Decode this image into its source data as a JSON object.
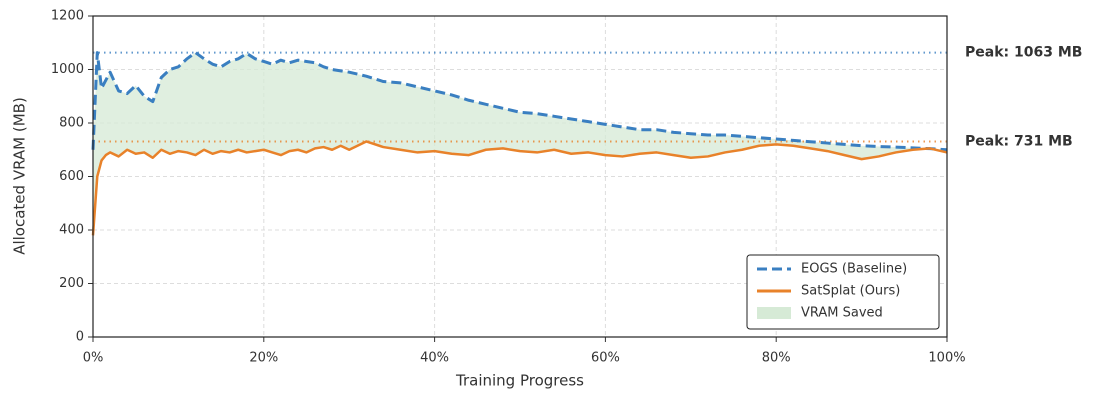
{
  "chart_data": {
    "type": "line",
    "xlabel": "Training Progress",
    "ylabel": "Allocated VRAM (MB)",
    "x": [
      0,
      0.5,
      1,
      1.5,
      2,
      3,
      4,
      5,
      6,
      7,
      8,
      9,
      10,
      11,
      12,
      13,
      14,
      15,
      16,
      17,
      18,
      19,
      20,
      21,
      22,
      23,
      24,
      25,
      26,
      27,
      28,
      29,
      30,
      32,
      34,
      36,
      38,
      40,
      42,
      44,
      46,
      48,
      50,
      52,
      54,
      56,
      58,
      60,
      62,
      64,
      66,
      68,
      70,
      72,
      74,
      76,
      78,
      80,
      82,
      84,
      86,
      88,
      90,
      92,
      94,
      96,
      98,
      100
    ],
    "series": [
      {
        "name": "EOGS (Baseline)",
        "color": "#3a7fc1",
        "dashed": true,
        "values": [
          700,
          1063,
          930,
          960,
          990,
          920,
          910,
          940,
          900,
          880,
          970,
          1000,
          1010,
          1040,
          1063,
          1040,
          1020,
          1010,
          1030,
          1040,
          1060,
          1040,
          1030,
          1020,
          1035,
          1025,
          1035,
          1030,
          1025,
          1010,
          1000,
          995,
          990,
          975,
          955,
          950,
          935,
          920,
          905,
          885,
          870,
          855,
          840,
          835,
          825,
          815,
          805,
          795,
          785,
          775,
          775,
          765,
          760,
          755,
          755,
          750,
          745,
          740,
          735,
          730,
          725,
          720,
          715,
          712,
          710,
          707,
          704,
          700
        ]
      },
      {
        "name": "SatSplat (Ours)",
        "color": "#e8822a",
        "dashed": false,
        "values": [
          380,
          600,
          660,
          680,
          690,
          675,
          700,
          685,
          690,
          670,
          700,
          685,
          695,
          690,
          680,
          700,
          685,
          695,
          690,
          700,
          690,
          695,
          700,
          690,
          680,
          695,
          700,
          690,
          705,
          710,
          700,
          715,
          700,
          731,
          710,
          700,
          690,
          695,
          685,
          680,
          700,
          705,
          695,
          690,
          700,
          685,
          690,
          680,
          675,
          685,
          690,
          680,
          670,
          675,
          690,
          700,
          715,
          720,
          715,
          705,
          695,
          680,
          665,
          675,
          690,
          700,
          705,
          690
        ]
      }
    ],
    "fill_between": {
      "name": "VRAM Saved",
      "color": "#d6ead6"
    },
    "annotations": [
      {
        "text": "Peak: 1063 MB",
        "value": 1063,
        "color": "#3a7fc1"
      },
      {
        "text": "Peak: 731 MB",
        "value": 731,
        "color": "#e8822a"
      }
    ],
    "xlim": [
      0,
      100
    ],
    "xticks": [
      {
        "value": 0,
        "label": "0%"
      },
      {
        "value": 20,
        "label": "20%"
      },
      {
        "value": 40,
        "label": "40%"
      },
      {
        "value": 60,
        "label": "60%"
      },
      {
        "value": 80,
        "label": "80%"
      },
      {
        "value": 100,
        "label": "100%"
      }
    ],
    "ylim": [
      0,
      1200
    ],
    "yticks": [
      0,
      200,
      400,
      600,
      800,
      1000,
      1200
    ],
    "grid": true,
    "legend": "lower right"
  }
}
